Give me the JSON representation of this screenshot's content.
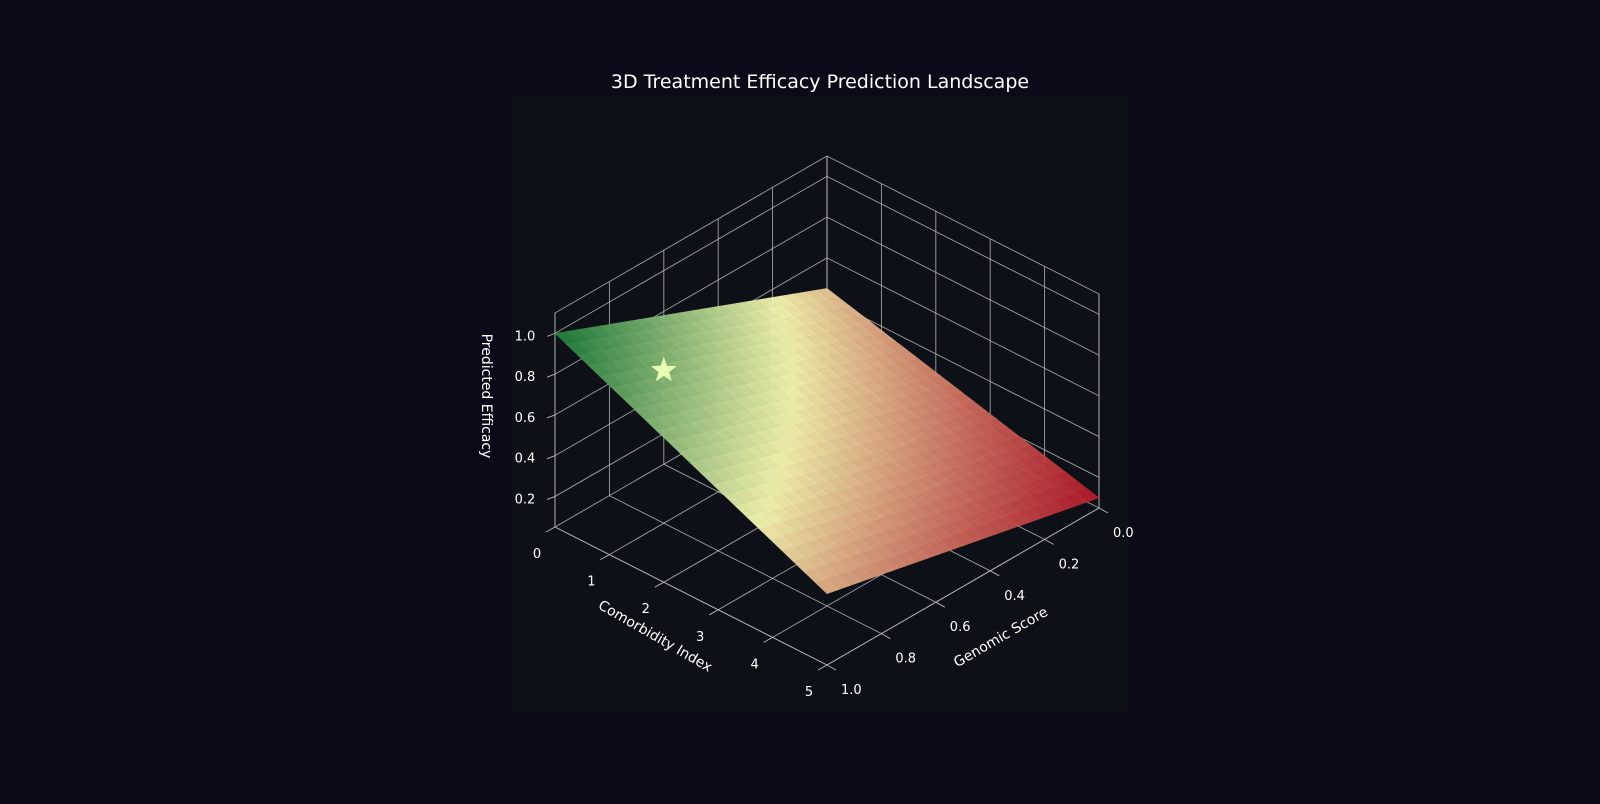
{
  "colors": {
    "figure_background": "#0a0a19",
    "axes_background": "#0d1117",
    "grid": "#b8b8b8",
    "text": "#ffffff",
    "surface_low": "#b2182b",
    "surface_mid": "#f6f6b0",
    "surface_high": "#1a7a3a",
    "marker": "#e6ffb0"
  },
  "chart_data": {
    "type": "surface",
    "title": "3D Treatment Efficacy Prediction Landscape",
    "xlabel": "Comorbidity Index",
    "ylabel": "Genomic Score",
    "zlabel": "Predicted Efficacy",
    "xlim": [
      0,
      5
    ],
    "ylim": [
      0,
      1
    ],
    "zlim": [
      0.05,
      1.1
    ],
    "xticks": [
      "0",
      "1",
      "2",
      "3",
      "4",
      "5"
    ],
    "yticks": [
      "0.0",
      "0.2",
      "0.4",
      "0.6",
      "0.8",
      "1.0"
    ],
    "zticks": [
      "0.2",
      "0.4",
      "0.6",
      "0.8",
      "1.0"
    ],
    "grid": true,
    "colormap": "RdYlGn",
    "surface_corners": [
      {
        "comorbidity_index": 0,
        "genomic_score": 1.0,
        "efficacy": 1.0
      },
      {
        "comorbidity_index": 0,
        "genomic_score": 0.0,
        "efficacy": 0.45
      },
      {
        "comorbidity_index": 5,
        "genomic_score": 1.0,
        "efficacy": 0.4
      },
      {
        "comorbidity_index": 5,
        "genomic_score": 0.0,
        "efficacy": 0.1
      }
    ],
    "highlight_marker": {
      "symbol": "star",
      "comorbidity_index": 1,
      "genomic_score": 0.8,
      "efficacy": 0.8
    }
  }
}
